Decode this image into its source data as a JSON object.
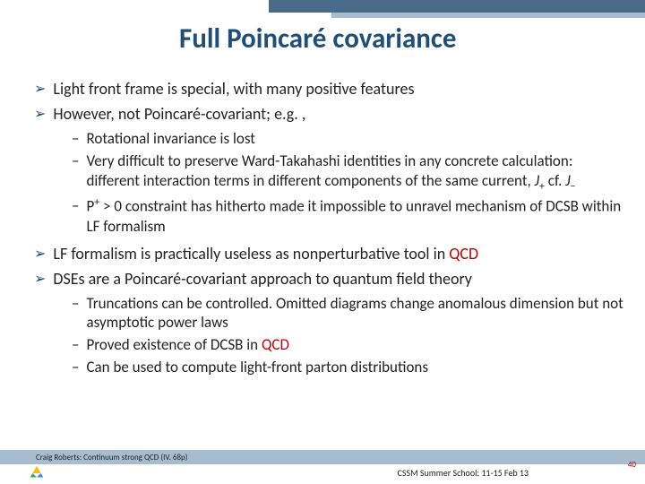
{
  "colors": {
    "title": "#1f4e79",
    "header_bar": "#4a6a8a",
    "header_bar_light": "#a8bcd0",
    "footer_bar": "#a8bcd0",
    "highlight": "#c00000",
    "text": "#222222",
    "background": "#ffffff"
  },
  "fonts": {
    "title_size": 31,
    "main_bullet_size": 18,
    "sub_bullet_size": 17,
    "footer_size": 9
  },
  "title": "Full Poincaré covariance",
  "bullets": [
    {
      "type": "main",
      "text": "Light front frame is special, with many positive features"
    },
    {
      "type": "main",
      "text": "However, not Poincaré-covariant; e.g. ,"
    },
    {
      "type": "sub_start"
    },
    {
      "type": "sub",
      "text": "Rotational invariance is lost"
    },
    {
      "type": "sub",
      "html": "Very difficult to preserve Ward-Takahashi identities in any concrete calculation: different interaction terms in different components of the same current, <i>J</i><sub>+</sub> cf. <i>J</i><sub>−</sub>"
    },
    {
      "type": "sub",
      "html": "P<sup>+</sup> > 0 constraint has hitherto made it impossible to unravel mechanism of DCSB within LF formalism"
    },
    {
      "type": "sub_end"
    },
    {
      "type": "main",
      "html": "LF formalism is practically useless as nonperturbative tool in <span class=\"red\">QCD</span>"
    },
    {
      "type": "main",
      "text": "DSEs are a Poincaré-covariant approach to quantum field theory"
    },
    {
      "type": "sub_start"
    },
    {
      "type": "sub",
      "text": "Truncations can be controlled.  Omitted diagrams change anomalous dimension but not asymptotic power laws"
    },
    {
      "type": "sub",
      "html": "Proved existence of DCSB in <span class=\"red\">QCD</span>"
    },
    {
      "type": "sub",
      "text": "Can be used to compute light-front parton distributions"
    },
    {
      "type": "sub_end"
    }
  ],
  "footer": {
    "left": "Craig Roberts: Continuum strong QCD (IV. 68p)",
    "right": "CSSM Summer School: 11-15 Feb 13",
    "page": "40"
  },
  "logo": {
    "colors": [
      "#4285f4",
      "#34a853",
      "#fbbc05",
      "#ea4335"
    ]
  }
}
